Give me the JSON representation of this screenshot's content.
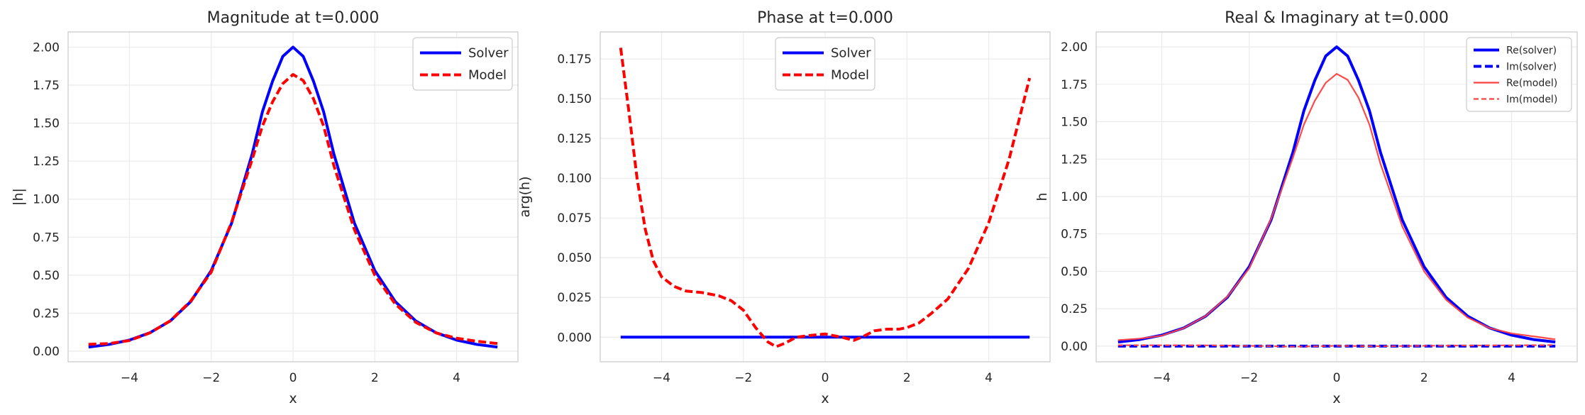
{
  "chart_data": [
    {
      "type": "line",
      "title": "Magnitude at t=0.000",
      "xlabel": "x",
      "ylabel": "|h|",
      "xlim": [
        -5.5,
        5.5
      ],
      "ylim": [
        -0.07,
        2.1
      ],
      "xticks": [
        -4,
        -2,
        0,
        2,
        4
      ],
      "xtick_labels": [
        "−4",
        "−2",
        "0",
        "2",
        "4"
      ],
      "yticks": [
        0.0,
        0.25,
        0.5,
        0.75,
        1.0,
        1.25,
        1.5,
        1.75,
        2.0
      ],
      "ytick_labels": [
        "0.00",
        "0.25",
        "0.50",
        "0.75",
        "1.00",
        "1.25",
        "1.50",
        "1.75",
        "2.00"
      ],
      "grid": true,
      "legend_position": "top-right",
      "series": [
        {
          "name": "Solver",
          "color": "#0000ff",
          "style": "solid",
          "x": [
            -5,
            -4.5,
            -4,
            -3.5,
            -3,
            -2.5,
            -2,
            -1.5,
            -1,
            -0.75,
            -0.5,
            -0.25,
            0,
            0.25,
            0.5,
            0.75,
            1,
            1.5,
            2,
            2.5,
            3,
            3.5,
            4,
            4.5,
            5
          ],
          "y": [
            0.027,
            0.044,
            0.073,
            0.121,
            0.199,
            0.326,
            0.53,
            0.843,
            1.296,
            1.573,
            1.776,
            1.939,
            2.0,
            1.939,
            1.776,
            1.573,
            1.296,
            0.843,
            0.53,
            0.326,
            0.199,
            0.121,
            0.073,
            0.044,
            0.027
          ]
        },
        {
          "name": "Model",
          "color": "#ff0000",
          "style": "dashed",
          "x": [
            -5,
            -4.5,
            -4,
            -3.5,
            -3,
            -2.5,
            -2,
            -1.5,
            -1,
            -0.75,
            -0.5,
            -0.25,
            0,
            0.25,
            0.5,
            0.75,
            1,
            1.5,
            2,
            2.5,
            3,
            3.5,
            4,
            4.5,
            5
          ],
          "y": [
            0.045,
            0.05,
            0.07,
            0.12,
            0.2,
            0.33,
            0.52,
            0.85,
            1.26,
            1.48,
            1.64,
            1.76,
            1.82,
            1.78,
            1.66,
            1.48,
            1.22,
            0.8,
            0.5,
            0.31,
            0.19,
            0.12,
            0.085,
            0.065,
            0.05
          ]
        }
      ]
    },
    {
      "type": "line",
      "title": "Phase at t=0.000",
      "xlabel": "x",
      "ylabel": "arg(h)",
      "xlim": [
        -5.5,
        5.5
      ],
      "ylim": [
        -0.0155,
        0.192
      ],
      "xticks": [
        -4,
        -2,
        0,
        2,
        4
      ],
      "xtick_labels": [
        "−4",
        "−2",
        "0",
        "2",
        "4"
      ],
      "yticks": [
        0.0,
        0.025,
        0.05,
        0.075,
        0.1,
        0.125,
        0.15,
        0.175
      ],
      "ytick_labels": [
        "0.000",
        "0.025",
        "0.050",
        "0.075",
        "0.100",
        "0.125",
        "0.150",
        "0.175"
      ],
      "grid": true,
      "legend_position": "top-center",
      "series": [
        {
          "name": "Solver",
          "color": "#0000ff",
          "style": "solid",
          "x": [
            -5,
            5
          ],
          "y": [
            0.0,
            0.0
          ]
        },
        {
          "name": "Model",
          "color": "#ff0000",
          "style": "dashed",
          "x": [
            -5,
            -4.8,
            -4.6,
            -4.4,
            -4.2,
            -4.0,
            -3.7,
            -3.4,
            -3.0,
            -2.6,
            -2.3,
            -2.0,
            -1.7,
            -1.4,
            -1.2,
            -1.0,
            -0.7,
            -0.4,
            0.0,
            0.4,
            0.7,
            0.9,
            1.2,
            1.5,
            1.8,
            2.0,
            2.3,
            2.6,
            3.0,
            3.5,
            4.0,
            4.5,
            5.0
          ],
          "y": [
            0.182,
            0.142,
            0.1,
            0.068,
            0.048,
            0.038,
            0.032,
            0.029,
            0.028,
            0.026,
            0.023,
            0.017,
            0.006,
            -0.003,
            -0.006,
            -0.004,
            0.0,
            0.001,
            0.002,
            0.0,
            -0.002,
            0.0,
            0.004,
            0.005,
            0.005,
            0.006,
            0.009,
            0.015,
            0.024,
            0.043,
            0.072,
            0.112,
            0.163
          ]
        }
      ]
    },
    {
      "type": "line",
      "title": "Real & Imaginary at t=0.000",
      "xlabel": "x",
      "ylabel": "h",
      "xlim": [
        -5.5,
        5.5
      ],
      "ylim": [
        -0.105,
        2.1
      ],
      "xticks": [
        -4,
        -2,
        0,
        2,
        4
      ],
      "xtick_labels": [
        "−4",
        "−2",
        "0",
        "2",
        "4"
      ],
      "yticks": [
        0.0,
        0.25,
        0.5,
        0.75,
        1.0,
        1.25,
        1.5,
        1.75,
        2.0
      ],
      "ytick_labels": [
        "0.00",
        "0.25",
        "0.50",
        "0.75",
        "1.00",
        "1.25",
        "1.50",
        "1.75",
        "2.00"
      ],
      "grid": true,
      "legend_position": "top-right",
      "series": [
        {
          "name": "Re(solver)",
          "color": "#0000ff",
          "style": "solid",
          "x": [
            -5,
            -4.5,
            -4,
            -3.5,
            -3,
            -2.5,
            -2,
            -1.5,
            -1,
            -0.75,
            -0.5,
            -0.25,
            0,
            0.25,
            0.5,
            0.75,
            1,
            1.5,
            2,
            2.5,
            3,
            3.5,
            4,
            4.5,
            5
          ],
          "y": [
            0.027,
            0.044,
            0.073,
            0.121,
            0.199,
            0.326,
            0.53,
            0.843,
            1.296,
            1.573,
            1.776,
            1.939,
            2.0,
            1.939,
            1.776,
            1.573,
            1.296,
            0.843,
            0.53,
            0.326,
            0.199,
            0.121,
            0.073,
            0.044,
            0.027
          ]
        },
        {
          "name": "Im(solver)",
          "color": "#0000ff",
          "style": "dashed",
          "x": [
            -5,
            5
          ],
          "y": [
            0.0,
            0.0
          ]
        },
        {
          "name": "Re(model)",
          "color": "#ff4040",
          "style": "solid-thin",
          "x": [
            -5,
            -4.5,
            -4,
            -3.5,
            -3,
            -2.5,
            -2,
            -1.5,
            -1,
            -0.75,
            -0.5,
            -0.25,
            0,
            0.25,
            0.5,
            0.75,
            1,
            1.5,
            2,
            2.5,
            3,
            3.5,
            4,
            4.5,
            5
          ],
          "y": [
            0.04,
            0.05,
            0.07,
            0.12,
            0.2,
            0.33,
            0.52,
            0.85,
            1.26,
            1.48,
            1.64,
            1.76,
            1.82,
            1.78,
            1.66,
            1.48,
            1.22,
            0.8,
            0.5,
            0.31,
            0.19,
            0.12,
            0.085,
            0.065,
            0.045
          ]
        },
        {
          "name": "Im(model)",
          "color": "#ff4040",
          "style": "dashed-thin",
          "x": [
            -5,
            -3,
            -1.5,
            -1,
            0,
            1,
            2,
            3,
            4,
            5
          ],
          "y": [
            0.006,
            0.005,
            0.0,
            -0.004,
            0.002,
            -0.001,
            0.002,
            0.004,
            0.005,
            0.007
          ]
        }
      ]
    }
  ]
}
